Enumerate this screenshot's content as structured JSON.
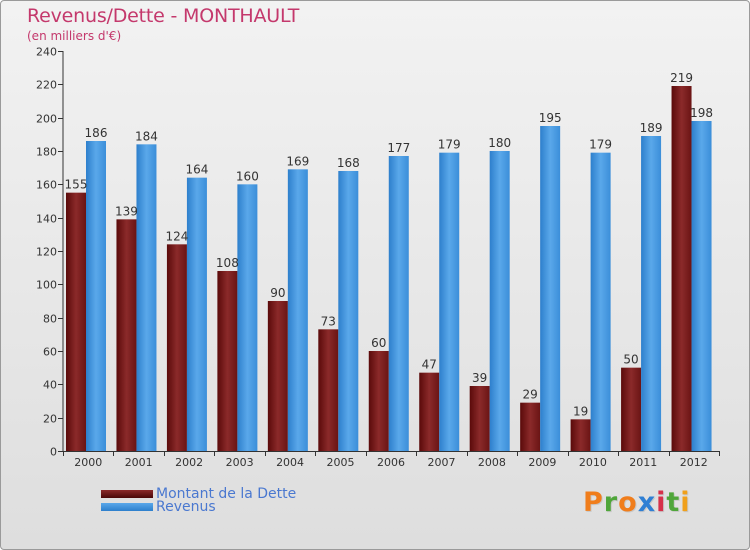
{
  "chart_data": {
    "type": "bar",
    "title": "Revenus/Dette - MONTHAULT",
    "subtitle": "(en milliers d'€)",
    "categories": [
      "2000",
      "2001",
      "2002",
      "2003",
      "2004",
      "2005",
      "2006",
      "2007",
      "2008",
      "2009",
      "2010",
      "2011",
      "2012"
    ],
    "series": [
      {
        "name": "Montant de la Dette",
        "color": "#7a1a1a",
        "values": [
          155,
          139,
          124,
          108,
          90,
          73,
          60,
          47,
          39,
          29,
          19,
          50,
          219
        ]
      },
      {
        "name": "Revenus",
        "color": "#3f95dd",
        "values": [
          186,
          184,
          164,
          160,
          169,
          168,
          177,
          179,
          180,
          195,
          179,
          189,
          198
        ]
      }
    ],
    "ylim": [
      0,
      240
    ],
    "yticks": [
      0,
      20,
      40,
      60,
      80,
      100,
      120,
      140,
      160,
      180,
      200,
      220,
      240
    ],
    "grid": false,
    "legend": "bottom-left"
  },
  "branding": {
    "logo_letters": [
      "P",
      "r",
      "o",
      "x",
      "i",
      "t",
      "i"
    ],
    "logo_colors": [
      "#f07d1b",
      "#4fa63a",
      "#f07d1b",
      "#2f7fd4",
      "#d6314a",
      "#4fa63a",
      "#f0a01b"
    ]
  }
}
